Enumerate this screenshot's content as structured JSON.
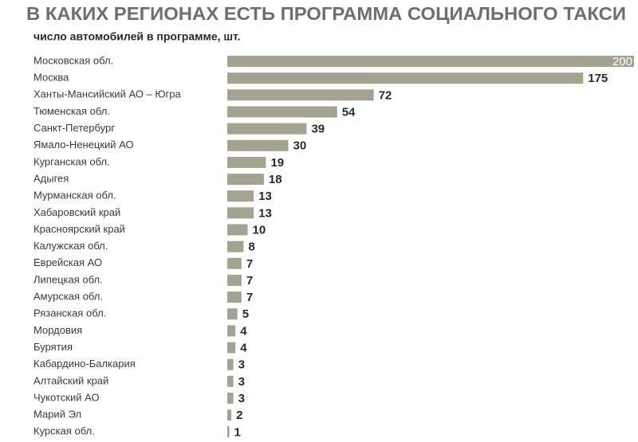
{
  "chart_data": {
    "type": "bar",
    "orientation": "horizontal",
    "title": "В КАКИХ РЕГИОНАХ ЕСТЬ ПРОГРАММА СОЦИАЛЬНОГО ТАКСИ",
    "subtitle": "число автомобилей в программе, шт.",
    "categories": [
      "Московская обл.",
      "Москва",
      "Ханты-Мансийский АО – Югра",
      "Тюменская обл.",
      "Санкт-Петербург",
      "Ямало-Ненецкий АО",
      "Курганская обл.",
      "Адыгея",
      "Мурманская обл.",
      "Хабаровский край",
      "Красноярский край",
      "Калужская обл.",
      "Еврейская АО",
      "Липецкая обл.",
      "Амурская обл.",
      "Рязанская обл.",
      "Мордовия",
      "Бурятия",
      "Кабардино-Балкария",
      "Алтайский край",
      "Чукотский АО",
      "Марий Эл",
      "Курская обл."
    ],
    "values": [
      200,
      175,
      72,
      54,
      39,
      30,
      19,
      18,
      13,
      13,
      10,
      8,
      7,
      7,
      7,
      5,
      4,
      4,
      3,
      3,
      3,
      2,
      1
    ],
    "color": "#a4a392"
  }
}
